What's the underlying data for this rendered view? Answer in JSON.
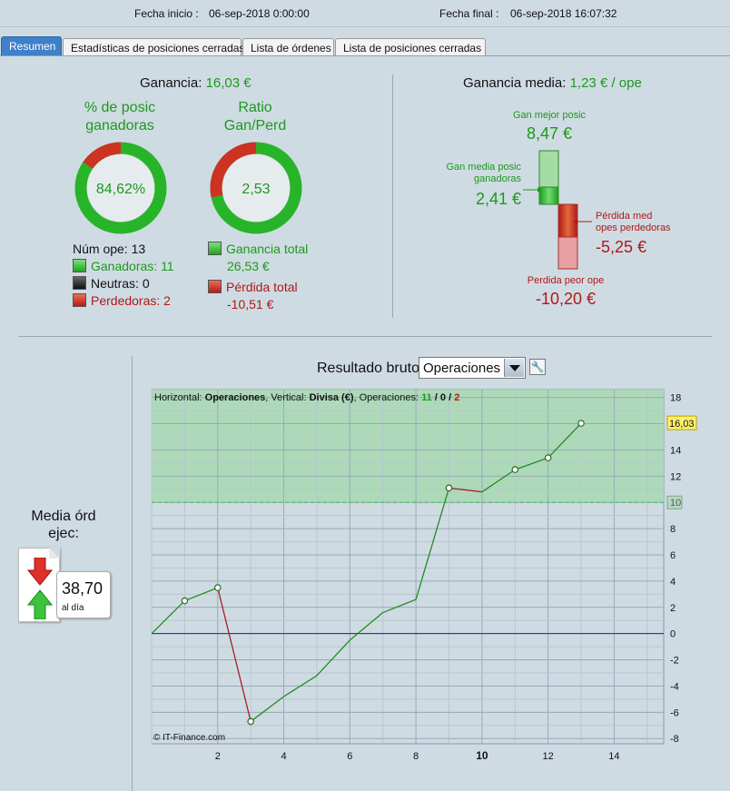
{
  "header": {
    "start_label": "Fecha inicio :",
    "start_value": "06-sep-2018 0:00:00",
    "end_label": "Fecha final :",
    "end_value": "06-sep-2018 16:07:32"
  },
  "tabs": [
    {
      "label": "Resumen",
      "active": true
    },
    {
      "label": "Estadísticas de posiciones cerradas",
      "active": false
    },
    {
      "label": "Lista de órdenes",
      "active": false
    },
    {
      "label": "Lista de posiciones cerradas",
      "active": false
    }
  ],
  "summary": {
    "profit_label": "Ganancia:",
    "profit_value": "16,03 €",
    "win_pct_title_1": "% de posic",
    "win_pct_title_2": "ganadoras",
    "win_pct_value": "84,62%",
    "win_pct_fraction": 0.8462,
    "ratio_title_1": "Ratio",
    "ratio_title_2": "Gan/Perd",
    "ratio_value": "2,53",
    "ratio_win_fraction": 0.7164,
    "num_ops_label": "Núm ope:",
    "num_ops_value": "13",
    "winners_label": "Ganadoras:",
    "winners_value": "11",
    "neutral_label": "Neutras:",
    "neutral_value": "0",
    "losers_label": "Perdedoras:",
    "losers_value": "2",
    "total_gain_label": "Ganancia total",
    "total_gain_value": "26,53 €",
    "total_loss_label": "Pérdida total",
    "total_loss_value": "-10,51 €"
  },
  "average": {
    "title_label": "Ganancia media:",
    "title_value": "1,23 € / ope",
    "best_label": "Gan mejor posic",
    "best_value": "8,47 €",
    "avg_win_label_1": "Gan media posic",
    "avg_win_label_2": "ganadoras",
    "avg_win_value": "2,41 €",
    "avg_loss_label_1": "Pérdida med",
    "avg_loss_label_2": "opes perdedoras",
    "avg_loss_value": "-5,25 €",
    "worst_label": "Perdida peor ope",
    "worst_value": "-10,20 €"
  },
  "orders": {
    "label_1": "Media órd",
    "label_2": "ejec:",
    "value": "38,70",
    "unit": "al día"
  },
  "chart_controls": {
    "title": "Resultado bruto",
    "select_value": "Operaciones"
  },
  "colors": {
    "accent_tab": "#3f80c9",
    "gain": "#1a9a1a",
    "loss": "#b01818",
    "zero_line": "#1f1fb0"
  },
  "chart_data": {
    "type": "line",
    "legend": {
      "prefix": "Horizontal: ",
      "horizontal": "Operaciones",
      "mid": ", Vertical: ",
      "vertical": "Divisa (€)",
      "ops_prefix": ", Operaciones: ",
      "wins": "11",
      "neutral": "0",
      "losses": "2"
    },
    "watermark": "© IT-Finance.com",
    "x": [
      0,
      1,
      2,
      3,
      4,
      5,
      6,
      7,
      8,
      9,
      10,
      11,
      12,
      13
    ],
    "y": [
      0,
      2.5,
      3.5,
      -6.7,
      -4.8,
      -3.2,
      -0.5,
      1.6,
      2.6,
      11.1,
      10.8,
      12.5,
      13.4,
      16.03
    ],
    "markers_at": [
      1,
      2,
      3,
      9,
      11,
      12,
      13
    ],
    "loss_segments": [
      [
        2,
        3
      ],
      [
        9,
        10
      ]
    ],
    "xlim": [
      0,
      15.5
    ],
    "ylim": [
      -8.4,
      18.6
    ],
    "xticks": [
      2,
      4,
      6,
      8,
      10,
      12,
      14
    ],
    "xticks_bold": [
      10
    ],
    "yticks": [
      18,
      16,
      14,
      12,
      10,
      8,
      6,
      4,
      2,
      0,
      -2,
      -4,
      -6,
      -8
    ],
    "target_value": 10,
    "target_label": "10",
    "last_value_label": "16,03",
    "grid": true
  }
}
